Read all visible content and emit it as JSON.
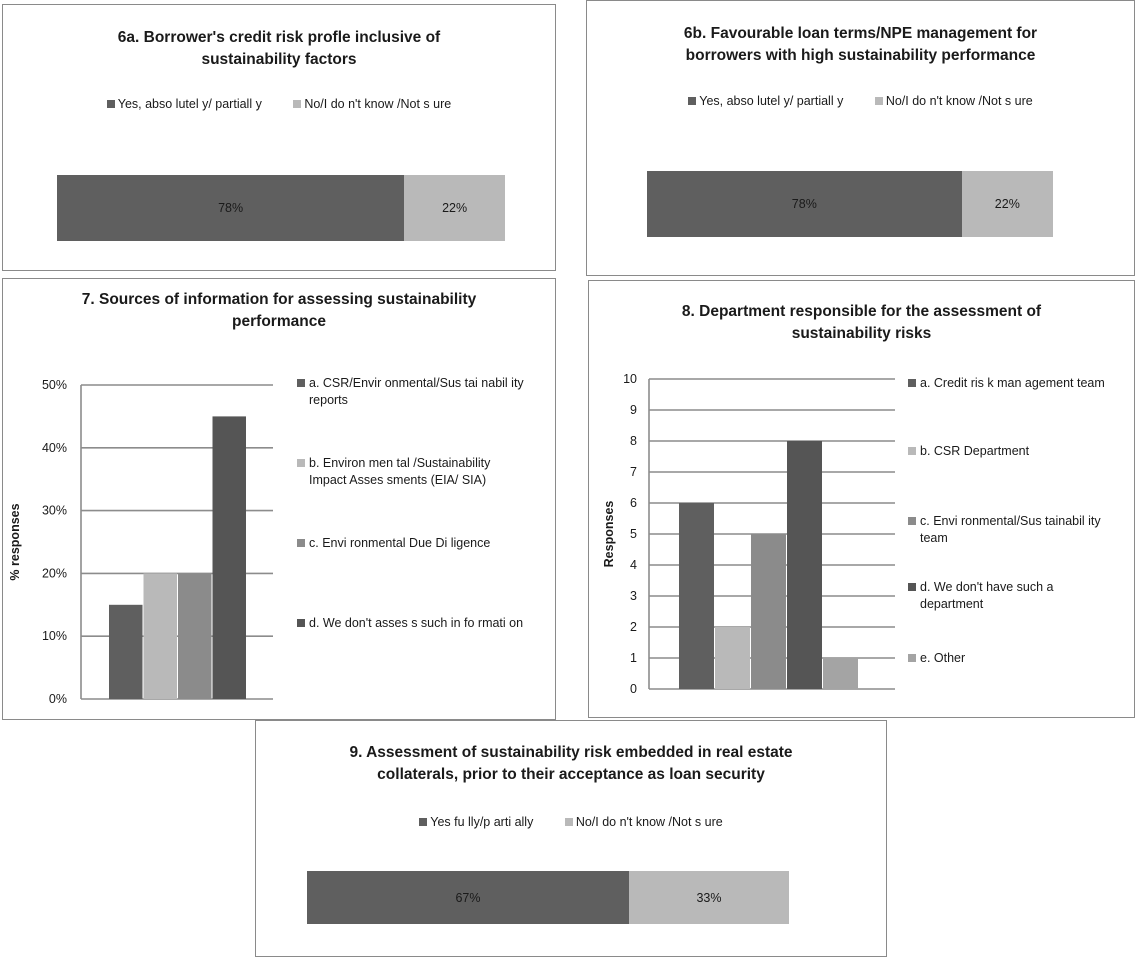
{
  "colors": {
    "dark": "#5f5f5f",
    "light": "#b9b9b9",
    "mid": "#8b8b8b",
    "darker": "#555555",
    "other": "#a4a4a4"
  },
  "chart_data": [
    {
      "id": "6a",
      "type": "bar",
      "orientation": "horizontal-stacked",
      "title": "6a. Borrower's credit risk profle inclusive of sustainability factors",
      "legend": [
        "Yes, abso lutel y/ partiall y",
        "No/I do n't know /Not s ure"
      ],
      "series": [
        {
          "name": "Yes, abso lutel y/ partiall y",
          "values": [
            78
          ],
          "label": "78%"
        },
        {
          "name": "No/I do n't know /Not s ure",
          "values": [
            22
          ],
          "label": "22%"
        }
      ]
    },
    {
      "id": "6b",
      "type": "bar",
      "orientation": "horizontal-stacked",
      "title": "6b. Favourable loan terms/NPE management for borrowers with high sustainability performance",
      "legend": [
        "Yes, abso lutel y/ partiall y",
        "No/I do n't know /Not s ure"
      ],
      "series": [
        {
          "name": "Yes, abso lutel y/ partiall y",
          "values": [
            78
          ],
          "label": "78%"
        },
        {
          "name": "No/I do n't know /Not s ure",
          "values": [
            22
          ],
          "label": "22%"
        }
      ]
    },
    {
      "id": "7",
      "type": "bar",
      "title": "7. Sources of information for assessing sustainability performance",
      "ylabel": "% responses",
      "ylim": [
        0,
        50
      ],
      "yticks": [
        "0%",
        "10%",
        "20%",
        "30%",
        "40%",
        "50%"
      ],
      "grid": true,
      "legend_position": "right",
      "series": [
        {
          "name": "a. CSR/Envir onmental/Sus tai nabil ity reports",
          "value": 15
        },
        {
          "name": "b. Environ men tal /Sustainability Impact Asses sments (EIA/ SIA)",
          "value": 20
        },
        {
          "name": "c. Envi ronmental Due Di ligence",
          "value": 20
        },
        {
          "name": "d. We don't asses s such in fo rmati on",
          "value": 45
        }
      ]
    },
    {
      "id": "8",
      "type": "bar",
      "title": "8. Department responsible for the assessment of sustainability risks",
      "ylabel": "Responses",
      "ylim": [
        0,
        10
      ],
      "yticks": [
        "0",
        "1",
        "2",
        "3",
        "4",
        "5",
        "6",
        "7",
        "8",
        "9",
        "10"
      ],
      "grid": true,
      "legend_position": "right",
      "series": [
        {
          "name": "a. Credit ris k man agement team",
          "value": 6
        },
        {
          "name": "b. CSR Department",
          "value": 2
        },
        {
          "name": "c. Envi ronmental/Sus tainabil ity team",
          "value": 5
        },
        {
          "name": "d. We don't have such a department",
          "value": 8
        },
        {
          "name": "e. Other",
          "value": 1
        }
      ]
    },
    {
      "id": "9",
      "type": "bar",
      "orientation": "horizontal-stacked",
      "title": "9. Assessment of sustainability risk embedded in real estate collaterals, prior to their acceptance as loan security",
      "legend": [
        "Yes fu lly/p arti ally",
        "No/I do n't know /Not s ure"
      ],
      "series": [
        {
          "name": "Yes fu lly/p arti ally",
          "values": [
            67
          ],
          "label": "67%"
        },
        {
          "name": "No/I do n't know /Not s ure",
          "values": [
            33
          ],
          "label": "33%"
        }
      ]
    }
  ],
  "text": {
    "p6a": {
      "title1": "6a. Borrower's credit risk profle inclusive of",
      "title2": "sustainability factors",
      "leg1": "Yes, abso lutel y/ partiall y",
      "leg2": "No/I do n't know /Not s ure",
      "v1": "78%",
      "v2": "22%"
    },
    "p6b": {
      "title1": "6b. Favourable loan terms/NPE management for",
      "title2": "borrowers with high sustainability performance",
      "leg1": "Yes, abso lutel y/ partiall y",
      "leg2": "No/I do n't know /Not s ure",
      "v1": "78%",
      "v2": "22%"
    },
    "p7": {
      "title1": "7. Sources of information for assessing sustainability",
      "title2": "performance",
      "ylabel": "% responses",
      "leg": [
        [
          "a. CSR/Envir onmental/Sus tai nabil ity",
          "reports"
        ],
        [
          "b. Environ men tal /Sustainability",
          "Impact Asses sments (EIA/ SIA)"
        ],
        [
          "c. Envi ronmental Due Di ligence"
        ],
        [
          "d. We don't asses s such in fo rmati on"
        ]
      ]
    },
    "p8": {
      "title1": "8. Department responsible for the assessment of",
      "title2": "sustainability risks",
      "ylabel": "Responses",
      "leg": [
        [
          "a. Credit ris k man agement team"
        ],
        [
          "b. CSR Department"
        ],
        [
          "c. Envi ronmental/Sus tainabil ity",
          "team"
        ],
        [
          "d. We don't have such a",
          "department"
        ],
        [
          "e. Other"
        ]
      ]
    },
    "p9": {
      "title1": "9. Assessment of sustainability risk embedded in real estate",
      "title2": "collaterals, prior to their acceptance as loan security",
      "leg1": "Yes fu lly/p arti ally",
      "leg2": "No/I do n't know /Not s ure",
      "v1": "67%",
      "v2": "33%"
    }
  }
}
